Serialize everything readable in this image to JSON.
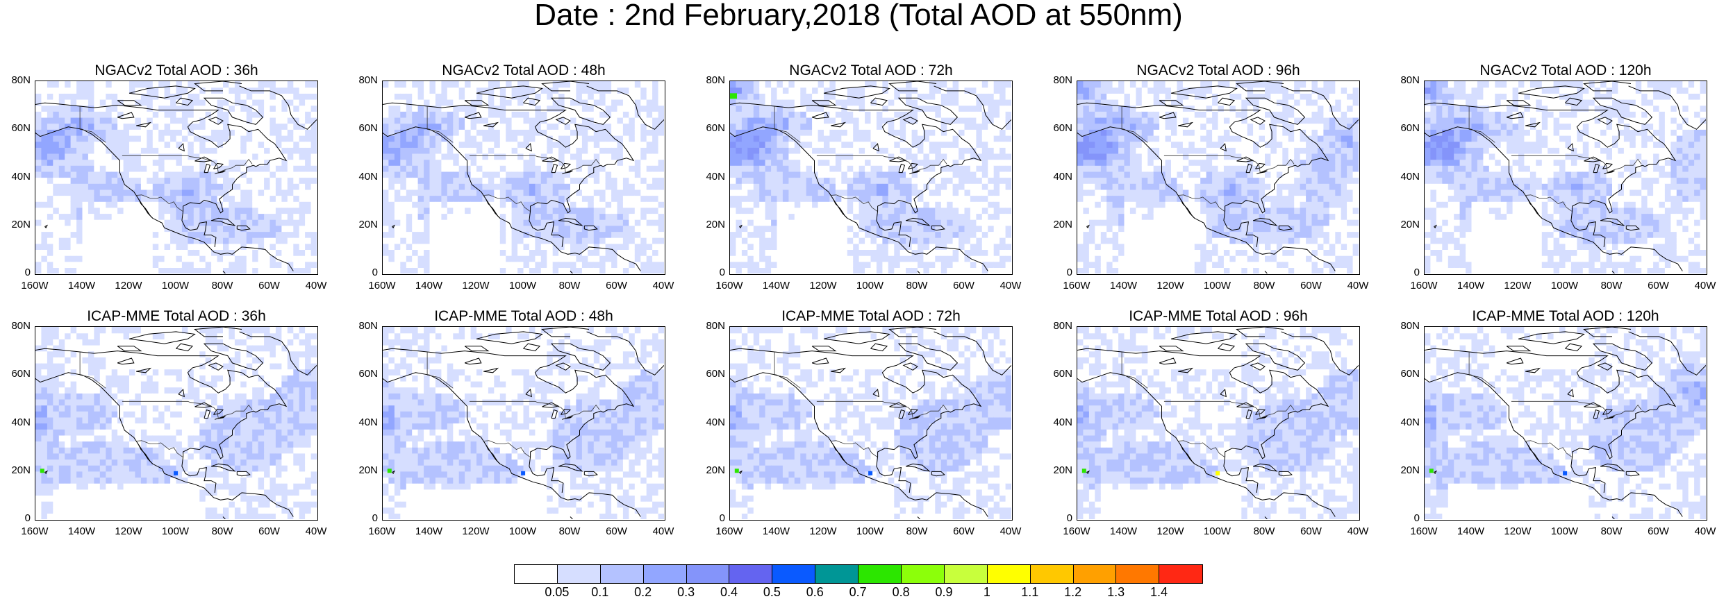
{
  "title": "Date : 2nd February,2018 (Total AOD at 550nm)",
  "panels": [
    {
      "title": "NGACv2 Total AOD : 36h",
      "row": 0,
      "col": 0,
      "model": "NGACv2",
      "lead": "36h"
    },
    {
      "title": "NGACv2 Total AOD : 48h",
      "row": 0,
      "col": 1,
      "model": "NGACv2",
      "lead": "48h"
    },
    {
      "title": "NGACv2 Total AOD : 72h",
      "row": 0,
      "col": 2,
      "model": "NGACv2",
      "lead": "72h"
    },
    {
      "title": "NGACv2 Total AOD : 96h",
      "row": 0,
      "col": 3,
      "model": "NGACv2",
      "lead": "96h"
    },
    {
      "title": "NGACv2 Total AOD : 120h",
      "row": 0,
      "col": 4,
      "model": "NGACv2",
      "lead": "120h"
    },
    {
      "title": "ICAP-MME Total AOD : 36h",
      "row": 1,
      "col": 0,
      "model": "ICAP-MME",
      "lead": "36h"
    },
    {
      "title": "ICAP-MME Total AOD : 48h",
      "row": 1,
      "col": 1,
      "model": "ICAP-MME",
      "lead": "48h"
    },
    {
      "title": "ICAP-MME Total AOD : 72h",
      "row": 1,
      "col": 2,
      "model": "ICAP-MME",
      "lead": "72h"
    },
    {
      "title": "ICAP-MME Total AOD : 96h",
      "row": 1,
      "col": 3,
      "model": "ICAP-MME",
      "lead": "96h"
    },
    {
      "title": "ICAP-MME Total AOD : 120h",
      "row": 1,
      "col": 4,
      "model": "ICAP-MME",
      "lead": "120h"
    }
  ],
  "axes": {
    "lat_ticks": [
      "80N",
      "60N",
      "40N",
      "20N",
      "0"
    ],
    "lon_ticks": [
      "160W",
      "140W",
      "120W",
      "100W",
      "80W",
      "60W",
      "40W"
    ],
    "lat_range": [
      0,
      80
    ],
    "lon_range": [
      -160,
      -40
    ]
  },
  "colorbar": {
    "colors": [
      "#ffffff",
      "#d6deff",
      "#b4c2ff",
      "#92a6ff",
      "#8494fa",
      "#6464f0",
      "#0a5aff",
      "#009696",
      "#2ce600",
      "#8cff0a",
      "#c8ff3c",
      "#ffff00",
      "#ffc800",
      "#ffa000",
      "#ff7800",
      "#ff2814"
    ],
    "labels": [
      "0.05",
      "0.1",
      "0.2",
      "0.3",
      "0.4",
      "0.5",
      "0.6",
      "0.7",
      "0.8",
      "0.9",
      "1",
      "1.1",
      "1.2",
      "1.3",
      "1.4"
    ]
  }
}
